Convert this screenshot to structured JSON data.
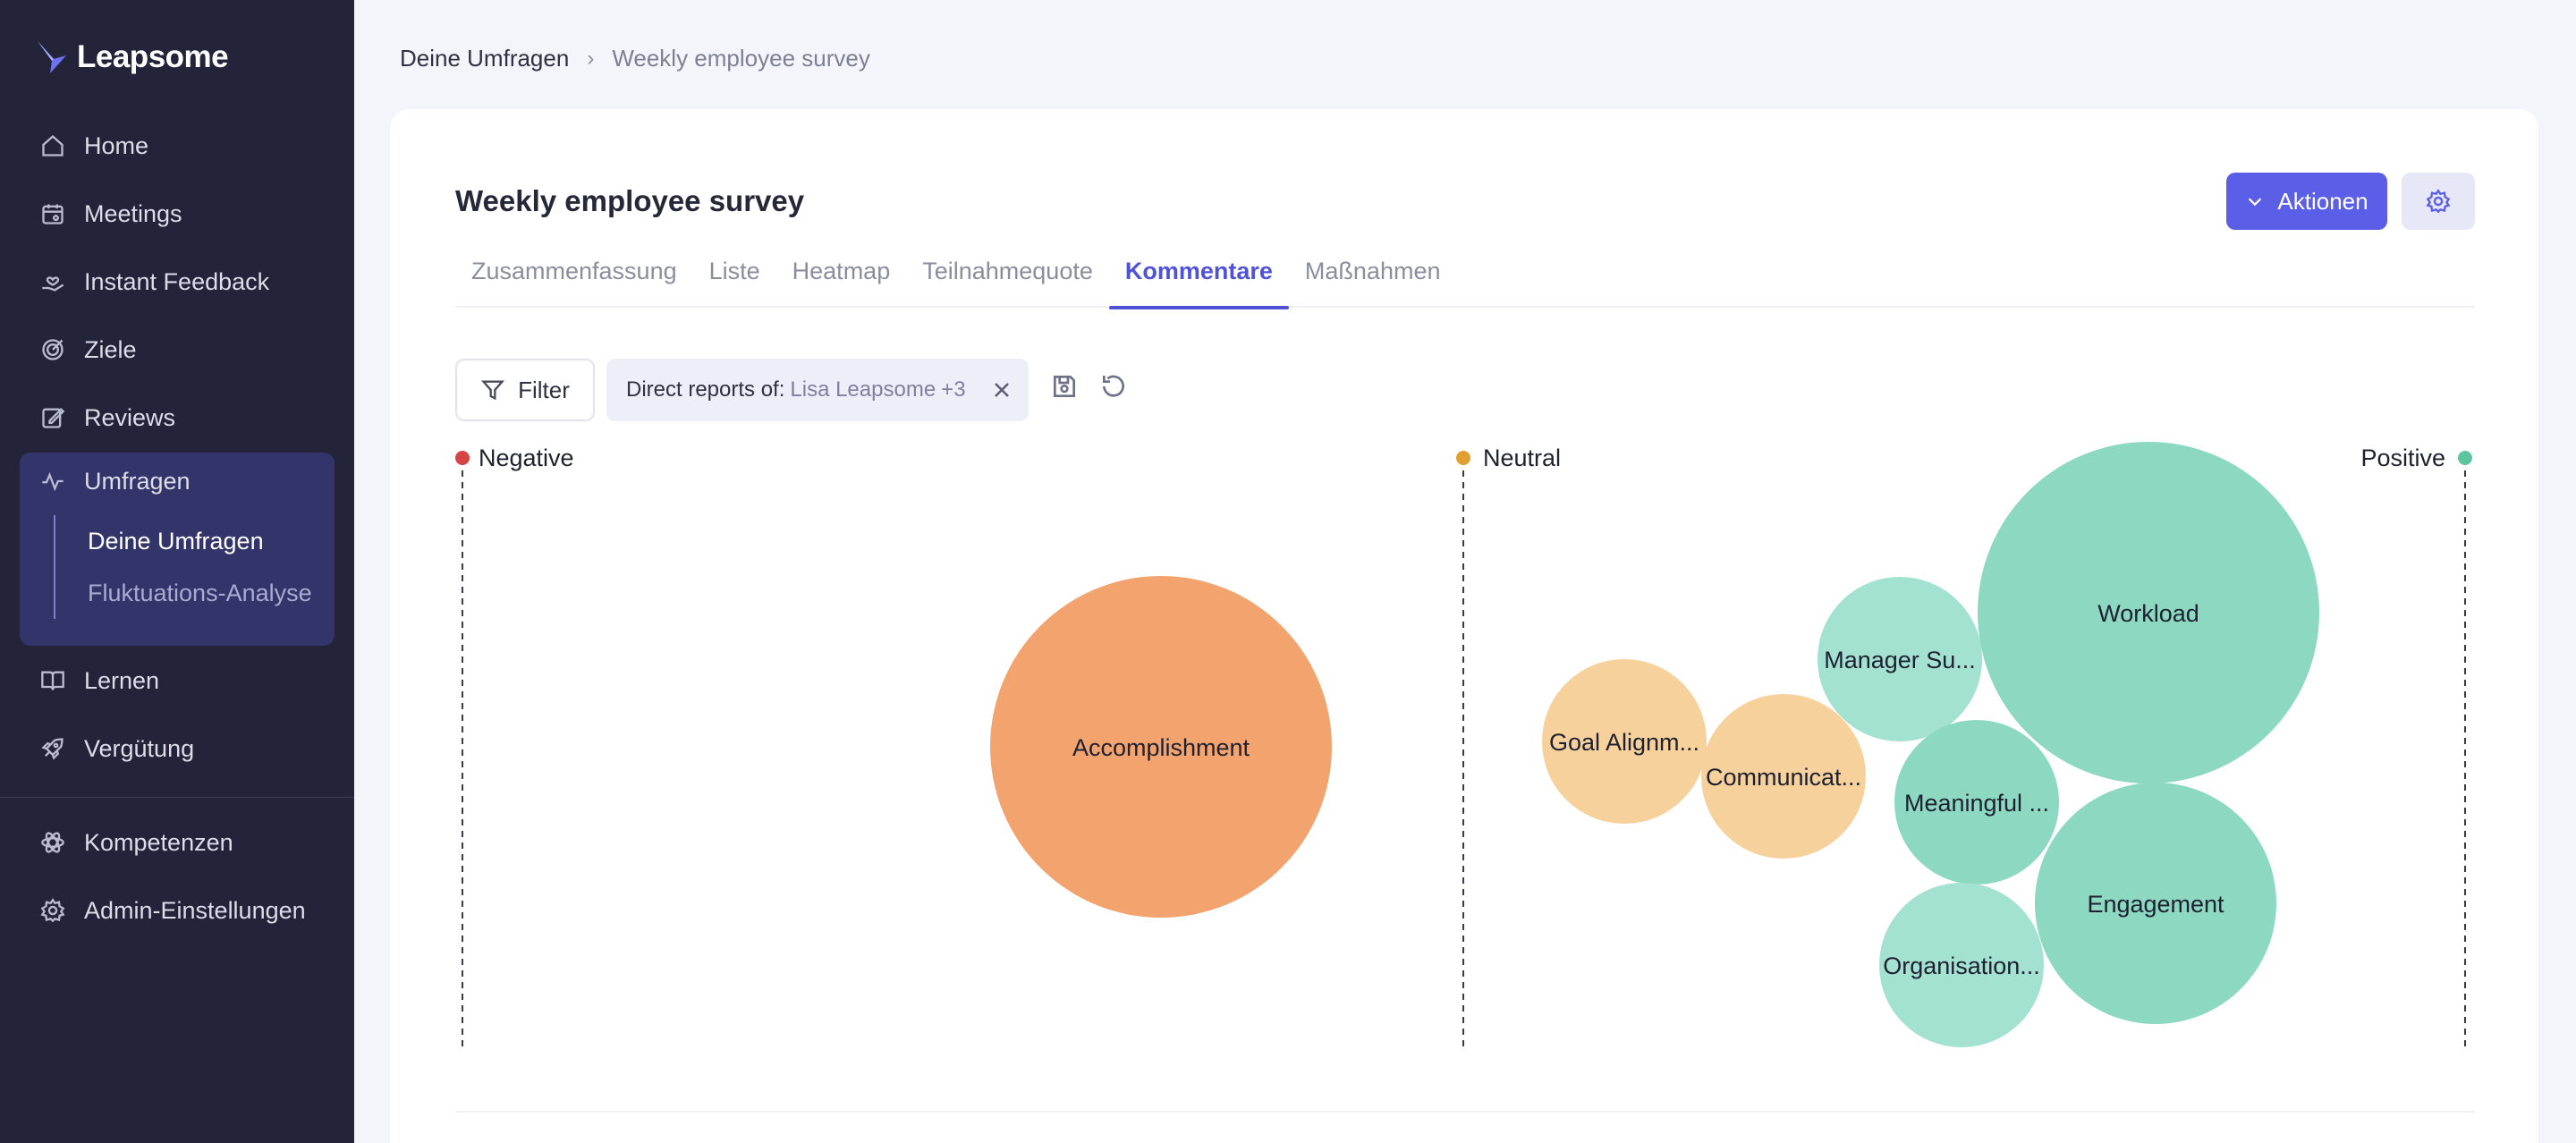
{
  "app": {
    "name": "Leapsome"
  },
  "sidebar": {
    "items": [
      {
        "label": "Home",
        "icon": "home-icon"
      },
      {
        "label": "Meetings",
        "icon": "calendar-icon"
      },
      {
        "label": "Instant Feedback",
        "icon": "hand-heart-icon"
      },
      {
        "label": "Ziele",
        "icon": "target-icon"
      },
      {
        "label": "Reviews",
        "icon": "edit-icon"
      },
      {
        "label": "Umfragen",
        "icon": "pulse-icon"
      },
      {
        "label": "Lernen",
        "icon": "book-icon"
      },
      {
        "label": "Vergütung",
        "icon": "rocket-icon"
      },
      {
        "label": "Kompetenzen",
        "icon": "atom-icon"
      },
      {
        "label": "Admin-Einstellungen",
        "icon": "gear-icon"
      }
    ],
    "umfragen_sub": [
      {
        "label": "Deine Umfragen"
      },
      {
        "label": "Fluktuations-Analyse"
      }
    ]
  },
  "breadcrumb": {
    "root": "Deine Umfragen",
    "current": "Weekly employee survey"
  },
  "page": {
    "title": "Weekly employee survey"
  },
  "actions": {
    "aktionen_label": "Aktionen"
  },
  "tabs": [
    {
      "label": "Zusammenfassung"
    },
    {
      "label": "Liste"
    },
    {
      "label": "Heatmap"
    },
    {
      "label": "Teilnahmequote"
    },
    {
      "label": "Kommentare"
    },
    {
      "label": "Maßnahmen"
    }
  ],
  "filter": {
    "button_label": "Filter",
    "chip_label": "Direct reports of:",
    "chip_value": "Lisa Leapsome",
    "chip_extra": "+3"
  },
  "chart_data": {
    "type": "scatter",
    "axis": {
      "negative": {
        "label": "Negative",
        "color": "#d64545"
      },
      "neutral": {
        "label": "Neutral",
        "color": "#e0a030"
      },
      "positive": {
        "label": "Positive",
        "color": "#5fc4a0"
      }
    },
    "bubbles": [
      {
        "label": "Accomplishment",
        "sentiment": -0.28,
        "color": "#f2a36e"
      },
      {
        "label": "Goal Alignm...",
        "sentiment": 0.16,
        "color": "#f7d19b"
      },
      {
        "label": "Communicat...",
        "sentiment": 0.32,
        "color": "#f7d19b"
      },
      {
        "label": "Manager Su...",
        "sentiment": 0.44,
        "color": "#a3e1d0"
      },
      {
        "label": "Workload",
        "sentiment": 0.68,
        "color": "#8cd8c1"
      },
      {
        "label": "Meaningful ...",
        "sentiment": 0.52,
        "color": "#8cd8c1"
      },
      {
        "label": "Engagement",
        "sentiment": 0.69,
        "color": "#8cd8c1"
      },
      {
        "label": "Organisation...",
        "sentiment": 0.5,
        "color": "#a3e1d0"
      }
    ]
  }
}
